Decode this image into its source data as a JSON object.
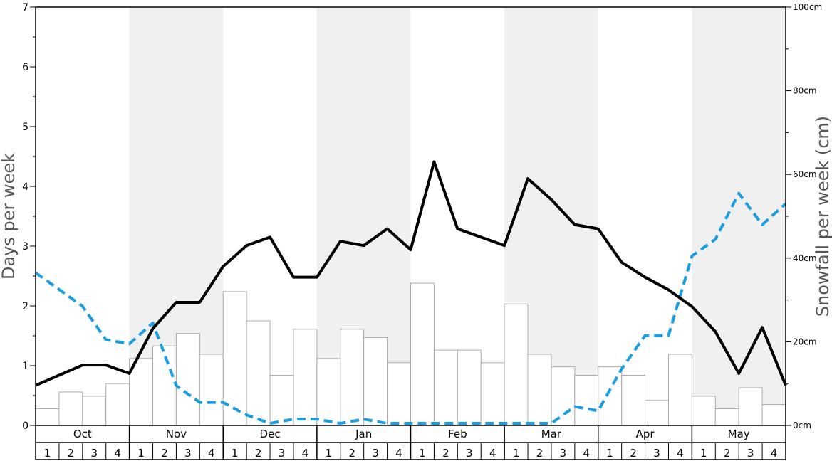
{
  "chart_data": {
    "type": "bar+line",
    "ylabel": "Days per week",
    "y2label": "Snowfall per week (cm)",
    "ylim": [
      0,
      7
    ],
    "y2lim": [
      0,
      100
    ],
    "yticks": [
      "0",
      "1",
      "2",
      "3",
      "4",
      "5",
      "6",
      "7"
    ],
    "y2ticks": [
      "0cm",
      "20cm",
      "40cm",
      "60cm",
      "80cm",
      "100cm"
    ],
    "months": [
      "Oct",
      "Nov",
      "Dec",
      "Jan",
      "Feb",
      "Mar",
      "Apr",
      "May"
    ],
    "weeks": [
      "1",
      "2",
      "3",
      "4"
    ],
    "shaded_months": [
      "Nov",
      "Jan",
      "Mar",
      "May"
    ],
    "snowfall_cm": [
      4,
      8,
      7,
      10,
      16,
      19,
      22,
      17,
      32,
      25,
      12,
      23,
      16,
      23,
      21,
      15,
      34,
      18,
      18,
      15,
      29,
      17,
      14,
      12,
      14,
      12,
      6,
      17,
      7,
      4,
      9,
      5
    ],
    "snow_days": [
      0.67,
      0.84,
      1.01,
      1.01,
      0.87,
      1.62,
      2.06,
      2.06,
      2.66,
      3.01,
      3.15,
      2.48,
      2.48,
      3.08,
      3.01,
      3.29,
      2.94,
      4.41,
      3.29,
      3.15,
      3.01,
      4.13,
      3.78,
      3.36,
      3.29,
      2.73,
      2.48,
      2.27,
      1.99,
      1.57,
      0.87,
      1.64,
      0.67
    ],
    "snowfall_line_cm": [
      36.5,
      32.5,
      28.5,
      20.5,
      19.5,
      24.5,
      9.5,
      5.5,
      5.5,
      2.5,
      0.5,
      1.5,
      1.5,
      0.5,
      1.5,
      0.5,
      0.5,
      0.5,
      0.5,
      0.5,
      0.5,
      0.5,
      0.5,
      4.5,
      3.5,
      13.5,
      21.5,
      21.5,
      40.5,
      44.5,
      55.5,
      48,
      53
    ],
    "colors": {
      "days_line": "#000000",
      "snowfall_line": "#1a9ee3",
      "bar_fill": "#ffffff",
      "bar_stroke": "#aaaaaa",
      "shade": "#f0f0f0"
    }
  }
}
